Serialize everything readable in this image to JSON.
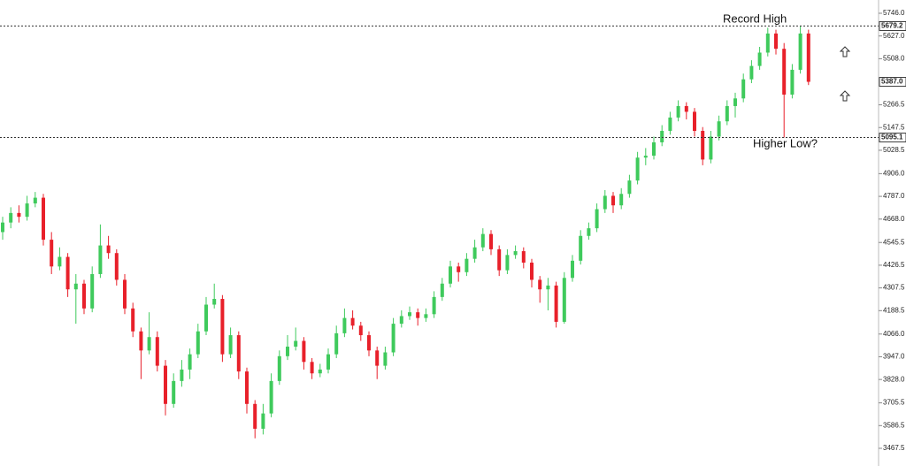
{
  "chart_data": {
    "type": "candlestick",
    "annotations": [
      "Record High",
      "Higher Low?"
    ],
    "up_color": "#3fca5c",
    "down_color": "#e8202a",
    "ylim": [
      3467.5,
      5746
    ],
    "yticks": [
      {
        "value": 5746,
        "label": "5746.0"
      },
      {
        "value": 5627,
        "label": "5627.0"
      },
      {
        "value": 5508,
        "label": "5508.0"
      },
      {
        "value": 5266.5,
        "label": "5266.5"
      },
      {
        "value": 5147.5,
        "label": "5147.5"
      },
      {
        "value": 5028.5,
        "label": "5028.5"
      },
      {
        "value": 4906,
        "label": "4906.0"
      },
      {
        "value": 4787,
        "label": "4787.0"
      },
      {
        "value": 4668,
        "label": "4668.0"
      },
      {
        "value": 4545.5,
        "label": "4545.5"
      },
      {
        "value": 4426.5,
        "label": "4426.5"
      },
      {
        "value": 4307.5,
        "label": "4307.5"
      },
      {
        "value": 4188.5,
        "label": "4188.5"
      },
      {
        "value": 4066,
        "label": "4066.0"
      },
      {
        "value": 3947,
        "label": "3947.0"
      },
      {
        "value": 3828,
        "label": "3828.0"
      },
      {
        "value": 3705.5,
        "label": "3705.5"
      },
      {
        "value": 3586.5,
        "label": "3586.5"
      },
      {
        "value": 3467.5,
        "label": "3467.5"
      }
    ],
    "levels": [
      {
        "value": 5679.2,
        "label": "5679.2",
        "dotted": true
      },
      {
        "value": 5387,
        "label": "5387.0",
        "dotted": false
      },
      {
        "value": 5095.1,
        "label": "5095.1",
        "dotted": true
      }
    ],
    "ohlc": [
      [
        4600,
        4680,
        4560,
        4650
      ],
      [
        4650,
        4730,
        4620,
        4700
      ],
      [
        4700,
        4740,
        4650,
        4680
      ],
      [
        4680,
        4790,
        4660,
        4750
      ],
      [
        4750,
        4810,
        4730,
        4780
      ],
      [
        4780,
        4800,
        4530,
        4560
      ],
      [
        4560,
        4600,
        4380,
        4420
      ],
      [
        4420,
        4520,
        4400,
        4470
      ],
      [
        4470,
        4490,
        4260,
        4300
      ],
      [
        4300,
        4380,
        4120,
        4330
      ],
      [
        4330,
        4350,
        4170,
        4200
      ],
      [
        4200,
        4420,
        4180,
        4380
      ],
      [
        4380,
        4640,
        4360,
        4530
      ],
      [
        4530,
        4580,
        4460,
        4490
      ],
      [
        4490,
        4510,
        4320,
        4350
      ],
      [
        4350,
        4380,
        4170,
        4200
      ],
      [
        4200,
        4230,
        4050,
        4080
      ],
      [
        4080,
        4100,
        3830,
        3980
      ],
      [
        3980,
        4180,
        3960,
        4050
      ],
      [
        4050,
        4080,
        3870,
        3900
      ],
      [
        3900,
        3930,
        3640,
        3700
      ],
      [
        3700,
        3860,
        3680,
        3820
      ],
      [
        3820,
        3930,
        3790,
        3880
      ],
      [
        3880,
        3990,
        3830,
        3960
      ],
      [
        3960,
        4120,
        3940,
        4080
      ],
      [
        4080,
        4260,
        4060,
        4220
      ],
      [
        4220,
        4330,
        4200,
        4250
      ],
      [
        4250,
        4270,
        3920,
        3960
      ],
      [
        3960,
        4100,
        3940,
        4060
      ],
      [
        4060,
        4080,
        3830,
        3870
      ],
      [
        3870,
        3890,
        3650,
        3700
      ],
      [
        3700,
        3720,
        3520,
        3570
      ],
      [
        3570,
        3700,
        3540,
        3650
      ],
      [
        3650,
        3860,
        3630,
        3820
      ],
      [
        3820,
        3980,
        3800,
        3950
      ],
      [
        3950,
        4060,
        3930,
        4000
      ],
      [
        4000,
        4100,
        3980,
        4030
      ],
      [
        4030,
        4050,
        3880,
        3920
      ],
      [
        3920,
        3940,
        3830,
        3860
      ],
      [
        3860,
        3910,
        3840,
        3880
      ],
      [
        3880,
        3990,
        3860,
        3960
      ],
      [
        3960,
        4110,
        3940,
        4070
      ],
      [
        4070,
        4200,
        4050,
        4150
      ],
      [
        4150,
        4190,
        4090,
        4110
      ],
      [
        4110,
        4130,
        4030,
        4060
      ],
      [
        4060,
        4080,
        3950,
        3980
      ],
      [
        3980,
        4000,
        3830,
        3900
      ],
      [
        3900,
        4000,
        3880,
        3970
      ],
      [
        3970,
        4150,
        3950,
        4120
      ],
      [
        4120,
        4190,
        4100,
        4160
      ],
      [
        4160,
        4210,
        4140,
        4180
      ],
      [
        4180,
        4200,
        4110,
        4150
      ],
      [
        4150,
        4200,
        4130,
        4170
      ],
      [
        4170,
        4290,
        4150,
        4260
      ],
      [
        4260,
        4360,
        4240,
        4330
      ],
      [
        4330,
        4450,
        4310,
        4420
      ],
      [
        4420,
        4440,
        4340,
        4390
      ],
      [
        4390,
        4490,
        4370,
        4460
      ],
      [
        4460,
        4560,
        4440,
        4520
      ],
      [
        4520,
        4620,
        4500,
        4590
      ],
      [
        4590,
        4610,
        4480,
        4510
      ],
      [
        4510,
        4530,
        4370,
        4400
      ],
      [
        4400,
        4510,
        4380,
        4480
      ],
      [
        4480,
        4530,
        4460,
        4500
      ],
      [
        4500,
        4520,
        4410,
        4440
      ],
      [
        4440,
        4460,
        4310,
        4350
      ],
      [
        4350,
        4370,
        4230,
        4300
      ],
      [
        4300,
        4360,
        4190,
        4320
      ],
      [
        4320,
        4340,
        4100,
        4130
      ],
      [
        4130,
        4390,
        4120,
        4360
      ],
      [
        4360,
        4480,
        4340,
        4450
      ],
      [
        4450,
        4610,
        4430,
        4580
      ],
      [
        4580,
        4650,
        4560,
        4620
      ],
      [
        4620,
        4750,
        4600,
        4720
      ],
      [
        4720,
        4820,
        4700,
        4790
      ],
      [
        4790,
        4810,
        4700,
        4740
      ],
      [
        4740,
        4830,
        4720,
        4800
      ],
      [
        4800,
        4900,
        4780,
        4870
      ],
      [
        4870,
        5020,
        4850,
        4990
      ],
      [
        4990,
        5040,
        4950,
        5000
      ],
      [
        5000,
        5100,
        4980,
        5070
      ],
      [
        5070,
        5160,
        5050,
        5130
      ],
      [
        5130,
        5230,
        5110,
        5200
      ],
      [
        5200,
        5290,
        5180,
        5260
      ],
      [
        5260,
        5280,
        5190,
        5230
      ],
      [
        5230,
        5250,
        5100,
        5130
      ],
      [
        5130,
        5150,
        4950,
        4980
      ],
      [
        4980,
        5130,
        4960,
        5100
      ],
      [
        5100,
        5210,
        5080,
        5180
      ],
      [
        5180,
        5290,
        5160,
        5260
      ],
      [
        5260,
        5330,
        5200,
        5300
      ],
      [
        5300,
        5430,
        5280,
        5400
      ],
      [
        5400,
        5500,
        5380,
        5470
      ],
      [
        5470,
        5570,
        5450,
        5540
      ],
      [
        5540,
        5670,
        5520,
        5640
      ],
      [
        5640,
        5660,
        5530,
        5560
      ],
      [
        5560,
        5590,
        5095,
        5320
      ],
      [
        5320,
        5480,
        5300,
        5450
      ],
      [
        5450,
        5679,
        5430,
        5640
      ],
      [
        5640,
        5660,
        5370,
        5387
      ]
    ]
  }
}
